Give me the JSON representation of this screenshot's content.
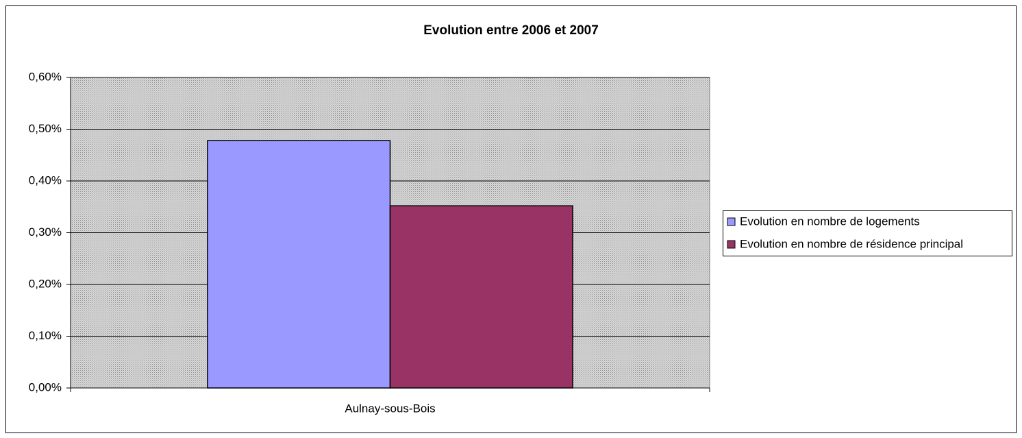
{
  "chart_data": {
    "type": "bar",
    "title": "Evolution entre 2006 et 2007",
    "categories": [
      "Aulnay-sous-Bois"
    ],
    "series": [
      {
        "name": "Evolution en nombre de logements",
        "color": "#9999ff",
        "values": [
          0.478
        ]
      },
      {
        "name": "Evolution en nombre de résidence principal",
        "color": "#993366",
        "values": [
          0.352
        ]
      }
    ],
    "ylim": [
      0,
      0.6
    ],
    "yticks": [
      {
        "value": 0,
        "label": "0,00%"
      },
      {
        "value": 0.1,
        "label": "0,10%"
      },
      {
        "value": 0.2,
        "label": "0,20%"
      },
      {
        "value": 0.3,
        "label": "0,30%"
      },
      {
        "value": 0.4,
        "label": "0,40%"
      },
      {
        "value": 0.5,
        "label": "0,50%"
      },
      {
        "value": 0.6,
        "label": "0,60%"
      }
    ],
    "grid": true,
    "legend": "right"
  }
}
